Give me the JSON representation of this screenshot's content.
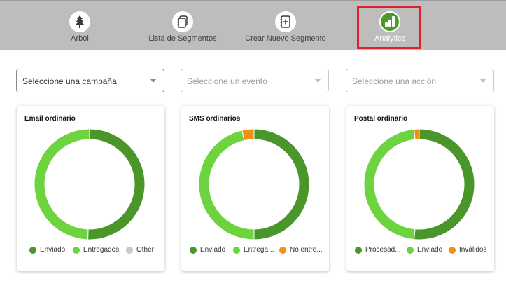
{
  "nav": {
    "items": [
      {
        "label": "Árbol",
        "icon": "tree-icon"
      },
      {
        "label": "Lista de Segmentos",
        "icon": "stacked-pages-icon"
      },
      {
        "label": "Crear Nuevo Segmento",
        "icon": "add-page-icon"
      },
      {
        "label": "Analytics",
        "icon": "bar-chart-icon"
      }
    ],
    "active_index": 3,
    "active_color": "#4a9a2c"
  },
  "filters": {
    "campaign_placeholder": "Seleccione una campaña",
    "event_placeholder": "Seleccione un evento",
    "action_placeholder": "Seleccione una acción"
  },
  "colors": {
    "dark_green": "#4a962b",
    "light_green": "#6dd33e",
    "grey": "#c8c8c8",
    "orange": "#f2900f"
  },
  "chart_data": [
    {
      "type": "pie",
      "title": "Email ordinario",
      "series": [
        {
          "name": "Enviado",
          "value": 50.5,
          "color": "#4a962b"
        },
        {
          "name": "Entregados",
          "value": 49.5,
          "color": "#6dd33e"
        },
        {
          "name": "Other",
          "value": 0,
          "color": "#c8c8c8"
        }
      ],
      "legend_labels": [
        "Enviado",
        "Entregados",
        "Other"
      ]
    },
    {
      "type": "pie",
      "title": "SMS ordinarios",
      "series": [
        {
          "name": "Enviado",
          "value": 50,
          "color": "#4a962b"
        },
        {
          "name": "Entregados",
          "value": 46.5,
          "color": "#6dd33e"
        },
        {
          "name": "No entregados",
          "value": 3.5,
          "color": "#f2900f"
        }
      ],
      "legend_labels": [
        "Enviado",
        "Entrega...",
        "No entre..."
      ]
    },
    {
      "type": "pie",
      "title": "Postal ordinario",
      "series": [
        {
          "name": "Procesados",
          "value": 51.5,
          "color": "#4a962b"
        },
        {
          "name": "Enviado",
          "value": 47,
          "color": "#6dd33e"
        },
        {
          "name": "Inválidos",
          "value": 1.5,
          "color": "#f2900f"
        }
      ],
      "legend_labels": [
        "Procesad...",
        "Enviado",
        "Inválidos"
      ]
    }
  ]
}
